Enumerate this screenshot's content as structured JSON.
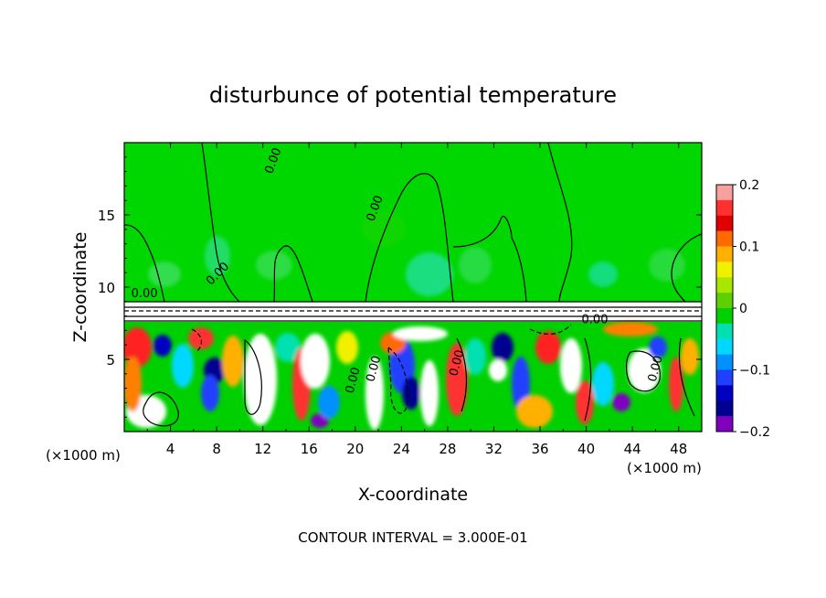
{
  "chart_data": {
    "type": "heatmap",
    "title": "disturbunce of potential temperature",
    "xlabel": "X-coordinate",
    "ylabel": "Z-coordinate",
    "x_unit": "(×1000 m)",
    "z_unit": "(×1000 m)",
    "xlim": [
      0,
      50
    ],
    "ylim": [
      0,
      20
    ],
    "x_ticks": [
      4,
      8,
      12,
      16,
      20,
      24,
      28,
      32,
      36,
      40,
      44,
      48
    ],
    "y_ticks": [
      5,
      10,
      15
    ],
    "colorbar": {
      "range": [
        -0.2,
        0.2
      ],
      "tick_values": [
        0.2,
        0.1,
        0,
        -0.1,
        -0.2
      ],
      "tick_labels": [
        "0.2",
        "0.1",
        "0",
        "−0.1",
        "−0.2"
      ],
      "colors": [
        "#f7a0a0",
        "#ff3030",
        "#e00000",
        "#ff6a00",
        "#ffb000",
        "#f0f000",
        "#a8e800",
        "#5cd000",
        "#00d000",
        "#00e0b0",
        "#00d8ff",
        "#0090ff",
        "#2040ff",
        "#0000c0",
        "#000090",
        "#8000c0"
      ]
    },
    "contour_interval": "CONTOUR INTERVAL = 3.000E-01",
    "contour_labels": [
      {
        "text": "0.00",
        "x": 12.8,
        "z": 17.8,
        "rot": -70
      },
      {
        "text": "0.00",
        "x": 0.6,
        "z": 9.3,
        "rot": 0
      },
      {
        "text": "0.00",
        "x": 7.5,
        "z": 10.1,
        "rot": -45
      },
      {
        "text": "0.00",
        "x": 21.6,
        "z": 14.5,
        "rot": -70
      },
      {
        "text": "0.00",
        "x": 39.6,
        "z": 7.5,
        "rot": 0
      },
      {
        "text": "0.00",
        "x": 19.8,
        "z": 2.6,
        "rot": -75
      },
      {
        "text": "0.00",
        "x": 21.6,
        "z": 3.4,
        "rot": -75
      },
      {
        "text": "0.00",
        "x": 28.8,
        "z": 3.8,
        "rot": -75
      },
      {
        "text": "0.00",
        "x": 46.0,
        "z": 3.4,
        "rot": -75
      }
    ],
    "regions": {
      "upper_layer": {
        "z_range": [
          8.8,
          20
        ],
        "dominant_value": 0.0
      },
      "transition_layer": {
        "z_range": [
          7.6,
          8.8
        ],
        "dominant_value": "white / strongly banded"
      },
      "lower_layer": {
        "z_range": [
          0,
          7.6
        ],
        "value_range": [
          -0.2,
          0.2
        ]
      }
    }
  }
}
